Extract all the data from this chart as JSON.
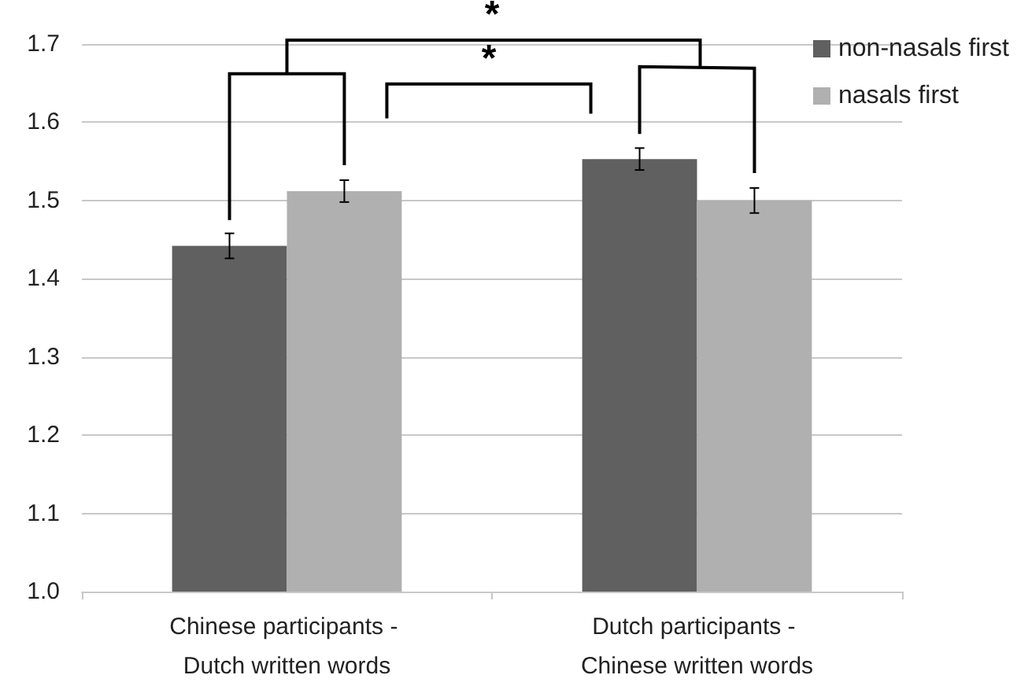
{
  "chart_data": {
    "type": "bar",
    "categories": [
      "Chinese participants - Dutch written words",
      "Dutch participants - Chinese written words"
    ],
    "series": [
      {
        "name": "non-nasals first",
        "color": "#606060",
        "values": [
          1.442,
          1.553
        ],
        "errors": [
          0.016,
          0.014
        ]
      },
      {
        "name": "nasals first",
        "color": "#b0b0b0",
        "values": [
          1.512,
          1.5
        ],
        "errors": [
          0.014,
          0.016
        ]
      }
    ],
    "ylim": [
      1.0,
      1.7
    ],
    "yticks": [
      {
        "value": 1,
        "label": "1.0"
      },
      1.1,
      1.2,
      1.3,
      1.4,
      1.5,
      1.6,
      1.7
    ],
    "grid": "y",
    "legend": "top right",
    "annotations": [
      "*",
      "*"
    ]
  }
}
